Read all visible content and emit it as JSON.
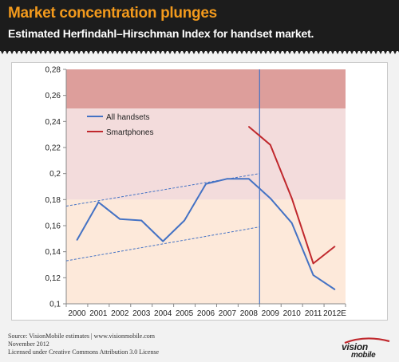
{
  "header": {
    "title": "Market concentration plunges",
    "subtitle": "Estimated Herfindahl–Hirschman Index for handset market."
  },
  "footer": {
    "source": "Source: VisionMobile estimates | www.visionmobile.com",
    "date": "November 2012",
    "license": "Licensed under Creative Commons Attribution 3.0 License"
  },
  "logo": {
    "line1": "vision",
    "line2": "mobile"
  },
  "colors": {
    "header_bg": "#1c1c1c",
    "title_orange": "#f39a1c",
    "all_handsets": "#4472c4",
    "smartphones": "#c0282d",
    "band_high": "#dd9e9b",
    "band_mid": "#f3dcdc",
    "band_low": "#fde9da"
  },
  "chart_data": {
    "type": "line",
    "categories": [
      "2000",
      "2001",
      "2002",
      "2003",
      "2004",
      "2005",
      "2006",
      "2007",
      "2008",
      "2009",
      "2010",
      "2011",
      "2012E"
    ],
    "ylim": [
      0.1,
      0.28
    ],
    "yticks": [
      0.1,
      0.12,
      0.14,
      0.16,
      0.18,
      0.2,
      0.22,
      0.24,
      0.26,
      0.28
    ],
    "ytick_labels": [
      "0,1",
      "0,12",
      "0,14",
      "0,16",
      "0,18",
      "0,2",
      "0,22",
      "0,24",
      "0,26",
      "0,28"
    ],
    "series": [
      {
        "name": "All handsets",
        "color": "#4472c4",
        "values": [
          0.149,
          0.178,
          0.165,
          0.164,
          0.148,
          0.164,
          0.192,
          0.196,
          0.196,
          0.181,
          0.162,
          0.122,
          0.111
        ]
      },
      {
        "name": "Smartphones",
        "color": "#c0282d",
        "values": [
          null,
          null,
          null,
          null,
          null,
          null,
          null,
          null,
          0.236,
          0.222,
          0.181,
          0.131,
          0.144
        ]
      }
    ],
    "bands": [
      {
        "from": 0.1,
        "to": 0.18,
        "color": "#fde9da"
      },
      {
        "from": 0.18,
        "to": 0.25,
        "color": "#f3dcdc"
      },
      {
        "from": 0.25,
        "to": 0.28,
        "color": "#dd9e9b"
      }
    ],
    "trendlines": [
      {
        "from": {
          "x": "2000",
          "y": 0.175
        },
        "to": {
          "x": "2008.5",
          "y": 0.2
        }
      },
      {
        "from": {
          "x": "2000",
          "y": 0.133
        },
        "to": {
          "x": "2008.5",
          "y": 0.159
        }
      }
    ],
    "vertical_marker_x": 8.5,
    "legend": "top-left",
    "grid": false
  }
}
